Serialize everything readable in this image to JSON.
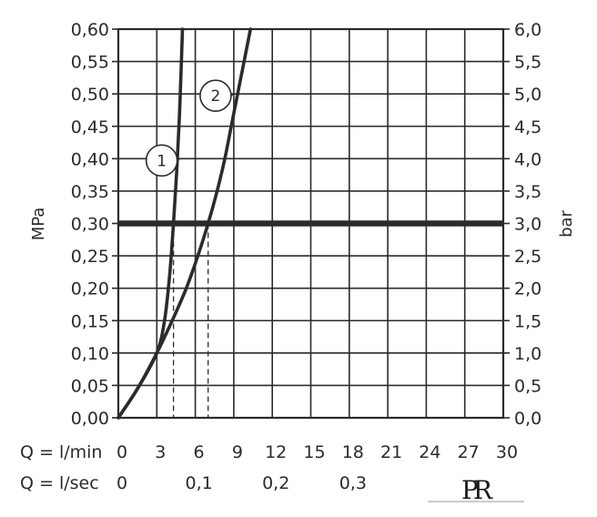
{
  "chart_data": {
    "type": "line",
    "ylabel_left": "MPa",
    "ylabel_right": "bar",
    "y_ticks_left": [
      "0,00",
      "0,05",
      "0,10",
      "0,15",
      "0,20",
      "0,25",
      "0,30",
      "0,35",
      "0,40",
      "0,45",
      "0,50",
      "0,55",
      "0,60"
    ],
    "y_ticks_right": [
      "0,0",
      "0,5",
      "1,0",
      "1,5",
      "2,0",
      "2,5",
      "3,0",
      "3,5",
      "4,0",
      "4,5",
      "5,0",
      "5,5",
      "6,0"
    ],
    "x_ticks_lmin": [
      "0",
      "3",
      "6",
      "9",
      "12",
      "15",
      "18",
      "21",
      "24",
      "27",
      "30"
    ],
    "x_ticks_lsec": [
      {
        "label": "0",
        "value": 0
      },
      {
        "label": "0,1",
        "value": 0.1
      },
      {
        "label": "0,2",
        "value": 0.2
      },
      {
        "label": "0,3",
        "value": 0.3
      }
    ],
    "x_row1_label": "Q = l/min",
    "x_row2_label": "Q = l/sec",
    "xlim": [
      0,
      30
    ],
    "ylim": [
      0,
      0.6
    ],
    "grid": true,
    "reference_line": {
      "y": 0.3
    },
    "series": [
      {
        "name": "1",
        "points": [
          [
            0,
            0
          ],
          [
            1.5,
            0.045
          ],
          [
            3,
            0.1
          ],
          [
            3.6,
            0.15
          ],
          [
            4,
            0.22
          ],
          [
            4.3,
            0.3
          ],
          [
            4.55,
            0.38
          ],
          [
            4.75,
            0.46
          ],
          [
            4.9,
            0.54
          ],
          [
            5,
            0.6
          ]
        ]
      },
      {
        "name": "2",
        "points": [
          [
            0,
            0
          ],
          [
            1.5,
            0.045
          ],
          [
            3,
            0.1
          ],
          [
            4.2,
            0.15
          ],
          [
            5.3,
            0.2
          ],
          [
            6.2,
            0.25
          ],
          [
            7,
            0.3
          ],
          [
            7.7,
            0.35
          ],
          [
            8.3,
            0.4
          ],
          [
            8.9,
            0.46
          ],
          [
            9.4,
            0.51
          ],
          [
            9.9,
            0.56
          ],
          [
            10.3,
            0.6
          ]
        ]
      }
    ],
    "markers": [
      {
        "series": "1",
        "label": "1",
        "x": 4.8,
        "y": 0.4
      },
      {
        "series": "2",
        "label": "2",
        "x": 9.0,
        "y": 0.5
      }
    ],
    "flow_at_reference": [
      {
        "series": "1",
        "x": 4.3
      },
      {
        "series": "2",
        "x": 7.0
      }
    ],
    "colors": {
      "line": "#2b2b2b",
      "grid": "#2b2b2b",
      "text": "#2b2b2b"
    }
  },
  "logo": {
    "text": "PR"
  }
}
